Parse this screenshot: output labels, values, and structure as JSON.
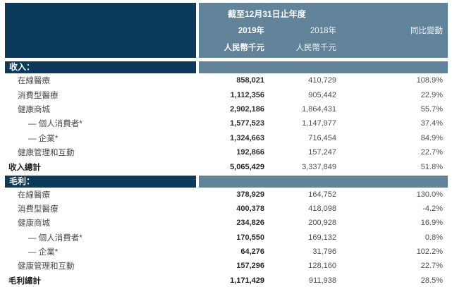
{
  "header": {
    "period_title": "截至12月31日止年度",
    "col_2019": "2019年",
    "col_2018": "2018年",
    "col_change": "同比變動",
    "unit_2019": "人民幣千元",
    "unit_2018": "人民幣千元"
  },
  "sections": [
    {
      "title": "收入：",
      "rows": [
        {
          "label": "在線醫療",
          "y2019": "858,021",
          "y2018": "410,729",
          "change": "108.9%"
        },
        {
          "label": "消費型醫療",
          "y2019": "1,112,356",
          "y2018": "905,442",
          "change": "22.9%"
        },
        {
          "label": "健康商城",
          "y2019": "2,902,186",
          "y2018": "1,864,431",
          "change": "55.7%"
        },
        {
          "label": "— 個人消費者*",
          "y2019": "1,577,523",
          "y2018": "1,147,977",
          "change": "37.4%"
        },
        {
          "label": "— 企業*",
          "y2019": "1,324,663",
          "y2018": "716,454",
          "change": "84.9%"
        },
        {
          "label": "健康管理和互動",
          "y2019": "192,866",
          "y2018": "157,247",
          "change": "22.7%"
        }
      ],
      "total": {
        "label": "收入總計",
        "y2019": "5,065,429",
        "y2018": "3,337,849",
        "change": "51.8%"
      }
    },
    {
      "title": "毛利：",
      "rows": [
        {
          "label": "在線醫療",
          "y2019": "378,929",
          "y2018": "164,752",
          "change": "130.0%"
        },
        {
          "label": "消費型醫療",
          "y2019": "400,378",
          "y2018": "418,098",
          "change": "-4.2%"
        },
        {
          "label": "健康商城",
          "y2019": "234,826",
          "y2018": "200,928",
          "change": "16.9%"
        },
        {
          "label": "— 個人消費者*",
          "y2019": "170,550",
          "y2018": "169,132",
          "change": "0.8%"
        },
        {
          "label": "— 企業*",
          "y2019": "64,276",
          "y2018": "31,796",
          "change": "102.2%"
        },
        {
          "label": "健康管理和互動",
          "y2019": "157,296",
          "y2018": "128,160",
          "change": "22.7%"
        }
      ],
      "total": {
        "label": "毛利總計",
        "y2019": "1,171,429",
        "y2018": "911,938",
        "change": "28.5%"
      }
    }
  ],
  "colors": {
    "navy_band": "#0b3a5b",
    "steel_header": "#61849b",
    "band_text": "#ffffff",
    "bold_value_text": "#2d2d2d",
    "regular_value_text": "#4e4e4e"
  }
}
